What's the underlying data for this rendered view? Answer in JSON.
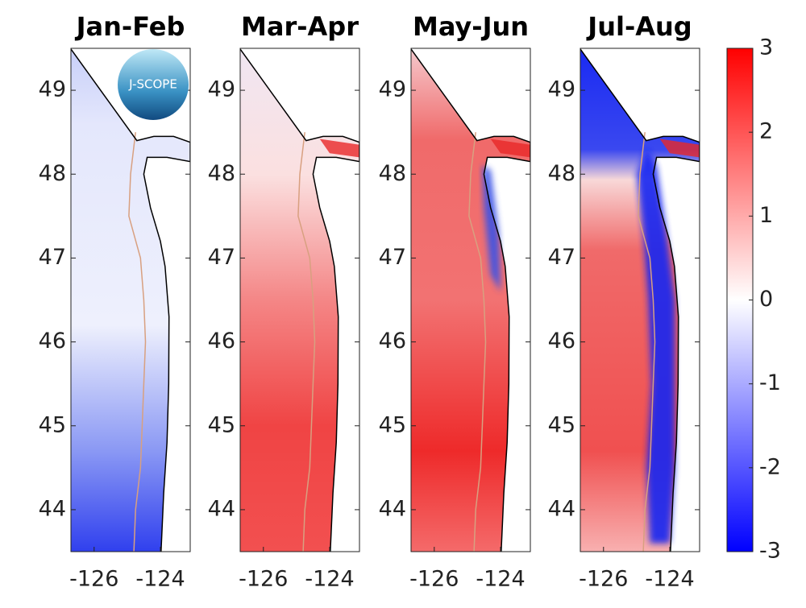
{
  "chart_data": [
    {
      "type": "map",
      "title": "Jan-Feb",
      "xlim": [
        -126.7,
        -123.1
      ],
      "ylim": [
        43.5,
        49.5
      ],
      "xticks": [
        -126,
        -124
      ],
      "yticks": [
        44,
        45,
        46,
        47,
        48,
        49
      ]
    },
    {
      "type": "map",
      "title": "Mar-Apr",
      "xlim": [
        -126.7,
        -123.1
      ],
      "ylim": [
        43.5,
        49.5
      ],
      "xticks": [
        -126,
        -124
      ],
      "yticks": [
        44,
        45,
        46,
        47,
        48,
        49
      ]
    },
    {
      "type": "map",
      "title": "May-Jun",
      "xlim": [
        -126.7,
        -123.1
      ],
      "ylim": [
        43.5,
        49.5
      ],
      "xticks": [
        -126,
        -124
      ],
      "yticks": [
        44,
        45,
        46,
        47,
        48,
        49
      ]
    },
    {
      "type": "map",
      "title": "Jul-Aug",
      "xlim": [
        -126.7,
        -123.1
      ],
      "ylim": [
        43.5,
        49.5
      ],
      "xticks": [
        -126,
        -124
      ],
      "yticks": [
        44,
        45,
        46,
        47,
        48,
        49
      ]
    }
  ],
  "colorbar": {
    "clim": [
      -3,
      3
    ],
    "ticks": [
      -3,
      -2,
      -1,
      0,
      1,
      2,
      3
    ],
    "colors": [
      "#0000ff",
      "#ffffff",
      "#ff0000"
    ]
  },
  "logo_text": "J-SCOPE"
}
